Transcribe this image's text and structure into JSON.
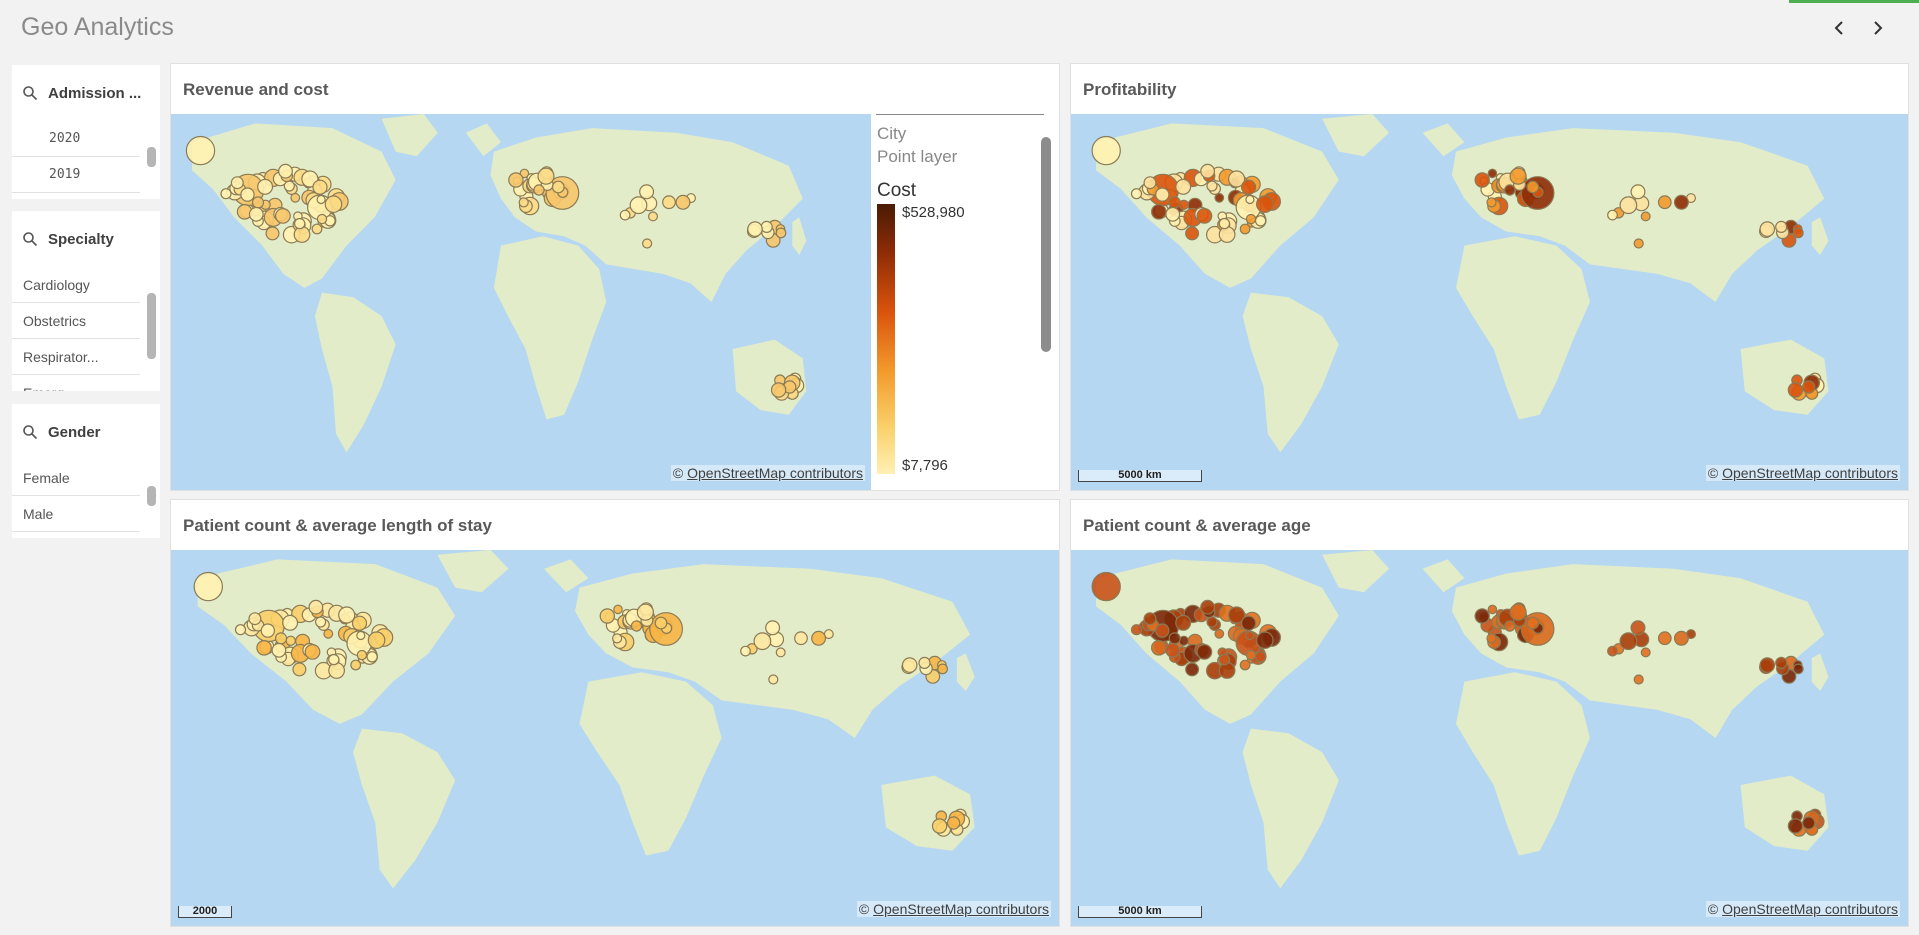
{
  "app": {
    "title": "Geo Analytics"
  },
  "nav": {
    "prev_icon": "chevron-left-icon",
    "next_icon": "chevron-right-icon"
  },
  "filters": {
    "admission": {
      "label": "Admission ...",
      "items": [
        "2020",
        "2019"
      ]
    },
    "specialty": {
      "label": "Specialty",
      "items": [
        "Cardiology",
        "Obstetrics",
        "Respirator...",
        "Emerg..."
      ]
    },
    "gender": {
      "label": "Gender",
      "items": [
        "Female",
        "Male"
      ]
    }
  },
  "panels": {
    "revenue": {
      "title": "Revenue and cost",
      "attribution": "OpenStreetMap contributors",
      "legend": {
        "dimension": "City",
        "layer": "Point layer",
        "measure": "Cost",
        "max": "$528,980",
        "min": "$7,796"
      }
    },
    "profitability": {
      "title": "Profitability",
      "attribution": "OpenStreetMap contributors",
      "scale": "5000 km"
    },
    "stay": {
      "title": "Patient count & average length of stay",
      "attribution": "OpenStreetMap contributors",
      "scale": "2000"
    },
    "age": {
      "title": "Patient count & average age",
      "attribution": "OpenStreetMap contributors",
      "scale": "5000 km"
    }
  },
  "colors": {
    "ocean": "#b5d7f2",
    "land": "#e3ecc8",
    "accent": "#d9540c",
    "dark": "#5a1d05",
    "light": "#fbe7a6"
  }
}
